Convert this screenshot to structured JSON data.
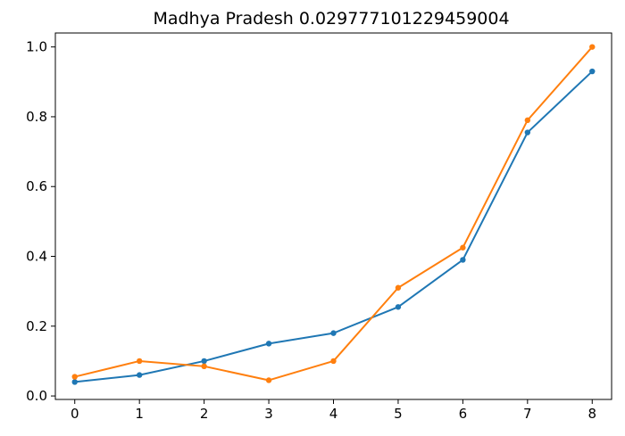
{
  "chart_data": {
    "type": "line",
    "title": "Madhya Pradesh 0.029777101229459004",
    "xlabel": "",
    "ylabel": "",
    "x": [
      0,
      1,
      2,
      3,
      4,
      5,
      6,
      7,
      8
    ],
    "xlim": [
      -0.3,
      8.3
    ],
    "ylim": [
      -0.01,
      1.04
    ],
    "xticks": [
      "0",
      "1",
      "2",
      "3",
      "4",
      "5",
      "6",
      "7",
      "8"
    ],
    "yticks": [
      "0.0",
      "0.2",
      "0.4",
      "0.6",
      "0.8",
      "1.0"
    ],
    "grid": false,
    "legend": "none",
    "series": [
      {
        "color": "#1f77b4",
        "marker": "dot",
        "values": [
          0.04,
          0.06,
          0.1,
          0.15,
          0.18,
          0.255,
          0.39,
          0.755,
          0.93
        ]
      },
      {
        "color": "#ff7f0e",
        "marker": "dot",
        "values": [
          0.055,
          0.1,
          0.085,
          0.045,
          0.1,
          0.31,
          0.425,
          0.79,
          1.0
        ]
      }
    ]
  }
}
